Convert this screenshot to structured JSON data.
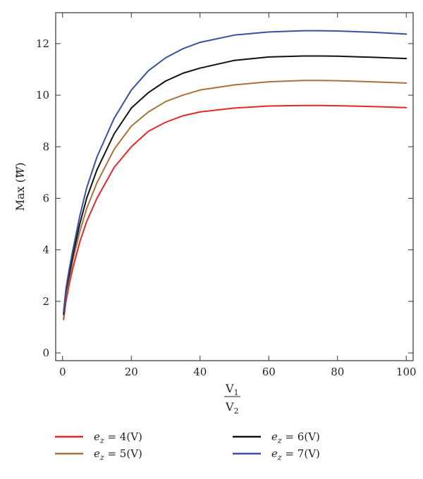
{
  "chart_data": {
    "type": "line",
    "title": "",
    "xlabel": {
      "numerator": "V1",
      "denominator": "V2"
    },
    "ylabel": "Max (W)",
    "xlim": [
      -2,
      102
    ],
    "ylim": [
      -0.3,
      13.2
    ],
    "xticks": [
      0,
      20,
      40,
      60,
      80,
      100
    ],
    "yticks": [
      0,
      2,
      4,
      6,
      8,
      10,
      12
    ],
    "grid": false,
    "legend_position": "bottom",
    "series": [
      {
        "name": "e_z = 4(V)",
        "legend": {
          "symbol": "e",
          "subscript": "z",
          "rest": " = 4(V)"
        },
        "color": "#e8262a",
        "x": [
          0.3,
          1,
          2,
          3,
          5,
          7,
          10,
          15,
          20,
          25,
          30,
          35,
          40,
          50,
          60,
          70,
          75,
          80,
          90,
          100
        ],
        "y": [
          1.3,
          2.0,
          2.7,
          3.3,
          4.3,
          5.1,
          6.0,
          7.2,
          8.0,
          8.6,
          8.95,
          9.2,
          9.35,
          9.5,
          9.58,
          9.6,
          9.6,
          9.59,
          9.56,
          9.52
        ]
      },
      {
        "name": "e_z = 5(V)",
        "legend": {
          "symbol": "e",
          "subscript": "z",
          "rest": " = 5(V)"
        },
        "color": "#a8733a",
        "x": [
          0.3,
          1,
          2,
          3,
          5,
          7,
          10,
          15,
          20,
          25,
          30,
          35,
          40,
          50,
          60,
          70,
          75,
          80,
          90,
          100
        ],
        "y": [
          1.4,
          2.2,
          2.9,
          3.6,
          4.7,
          5.6,
          6.6,
          7.9,
          8.8,
          9.35,
          9.75,
          10.0,
          10.2,
          10.4,
          10.52,
          10.57,
          10.57,
          10.56,
          10.52,
          10.47
        ]
      },
      {
        "name": "e_z = 6(V)",
        "legend": {
          "symbol": "e",
          "subscript": "z",
          "rest": " = 6(V)"
        },
        "color": "#111111",
        "x": [
          0.3,
          1,
          2,
          3,
          5,
          7,
          10,
          15,
          20,
          25,
          30,
          35,
          40,
          50,
          60,
          70,
          75,
          80,
          90,
          100
        ],
        "y": [
          1.5,
          2.4,
          3.1,
          3.8,
          5.0,
          6.0,
          7.1,
          8.5,
          9.5,
          10.1,
          10.55,
          10.85,
          11.05,
          11.35,
          11.48,
          11.52,
          11.52,
          11.51,
          11.47,
          11.42
        ]
      },
      {
        "name": "e_z = 7(V)",
        "legend": {
          "symbol": "e",
          "subscript": "z",
          "rest": " = 7(V)"
        },
        "color": "#3a4fa3",
        "x": [
          0.3,
          1,
          2,
          3,
          5,
          7,
          10,
          15,
          20,
          25,
          30,
          35,
          40,
          50,
          60,
          70,
          75,
          80,
          90,
          100
        ],
        "y": [
          1.6,
          2.5,
          3.3,
          4.0,
          5.3,
          6.4,
          7.6,
          9.1,
          10.2,
          10.95,
          11.45,
          11.8,
          12.05,
          12.33,
          12.45,
          12.5,
          12.5,
          12.49,
          12.44,
          12.37
        ]
      }
    ]
  }
}
